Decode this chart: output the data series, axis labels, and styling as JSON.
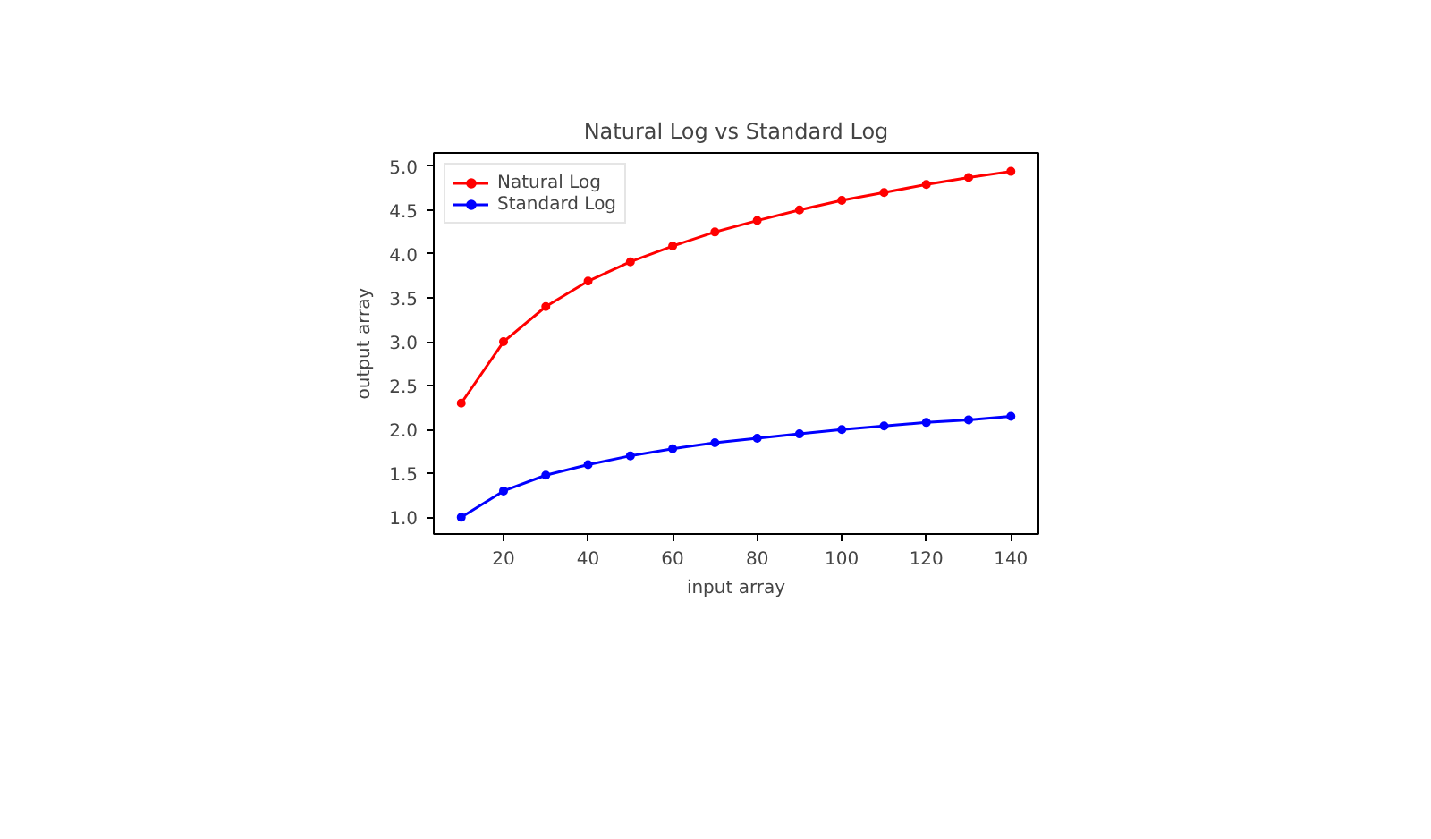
{
  "chart_data": {
    "type": "line",
    "title": "Natural Log vs Standard Log",
    "xlabel": "input array",
    "ylabel": "output array",
    "x": [
      10,
      20,
      30,
      40,
      50,
      60,
      70,
      80,
      90,
      100,
      110,
      120,
      130,
      140
    ],
    "series": [
      {
        "name": "Natural Log",
        "color": "#ff0000",
        "values": [
          2.3,
          3.0,
          3.4,
          3.69,
          3.91,
          4.09,
          4.25,
          4.38,
          4.5,
          4.61,
          4.7,
          4.79,
          4.87,
          4.94
        ]
      },
      {
        "name": "Standard Log",
        "color": "#0000ff",
        "values": [
          1.0,
          1.3,
          1.48,
          1.6,
          1.7,
          1.78,
          1.85,
          1.9,
          1.95,
          2.0,
          2.04,
          2.08,
          2.11,
          2.15
        ]
      }
    ],
    "xlim": [
      3.5,
      146.5
    ],
    "ylim": [
      0.81,
      5.15
    ],
    "xticks": [
      20,
      40,
      60,
      80,
      100,
      120,
      140
    ],
    "yticks": [
      {
        "value": 1,
        "label": "1.0"
      },
      {
        "value": 1.5,
        "label": "1.5"
      },
      {
        "value": 2,
        "label": "2.0"
      },
      {
        "value": 2.5,
        "label": "2.5"
      },
      {
        "value": 3,
        "label": "3.0"
      },
      {
        "value": 3.5,
        "label": "3.5"
      },
      {
        "value": 4,
        "label": "4.0"
      },
      {
        "value": 4.5,
        "label": "4.5"
      },
      {
        "value": 5,
        "label": "5.0"
      }
    ],
    "grid": false,
    "legend": "top left",
    "marker": "circle",
    "line_style": "solid"
  }
}
